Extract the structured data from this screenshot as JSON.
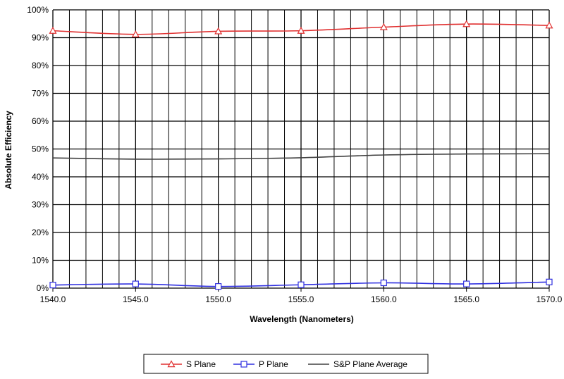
{
  "chart_data": {
    "type": "line",
    "title": "",
    "xlabel": "Wavelength (Nanometers)",
    "ylabel": "Absolute Efficiency",
    "xlim": [
      1540,
      1570
    ],
    "ylim": [
      0,
      100
    ],
    "x_ticks": [
      "1540.0",
      "1545.0",
      "1550.0",
      "1555.0",
      "1560.0",
      "1565.0",
      "1570.0"
    ],
    "y_ticks": [
      "0%",
      "10%",
      "20%",
      "30%",
      "40%",
      "50%",
      "60%",
      "70%",
      "80%",
      "90%",
      "100%"
    ],
    "grid": true,
    "legend_position": "bottom",
    "series": [
      {
        "name": "S Plane",
        "color": "#e03030",
        "marker": "triangle",
        "x": [
          1540,
          1545,
          1550,
          1555,
          1560,
          1565,
          1570
        ],
        "y": [
          92.5,
          91.2,
          92.3,
          92.5,
          93.8,
          94.9,
          94.4
        ]
      },
      {
        "name": "P Plane",
        "color": "#3030e0",
        "marker": "square",
        "x": [
          1540,
          1545,
          1550,
          1555,
          1560,
          1565,
          1570
        ],
        "y": [
          1.1,
          1.5,
          0.6,
          1.2,
          1.9,
          1.5,
          2.2
        ]
      },
      {
        "name": "S&P Plane Average",
        "color": "#404040",
        "marker": "none",
        "x": [
          1540,
          1545,
          1550,
          1555,
          1560,
          1565,
          1570
        ],
        "y": [
          46.8,
          46.35,
          46.45,
          46.85,
          47.85,
          48.2,
          48.3
        ]
      }
    ]
  }
}
